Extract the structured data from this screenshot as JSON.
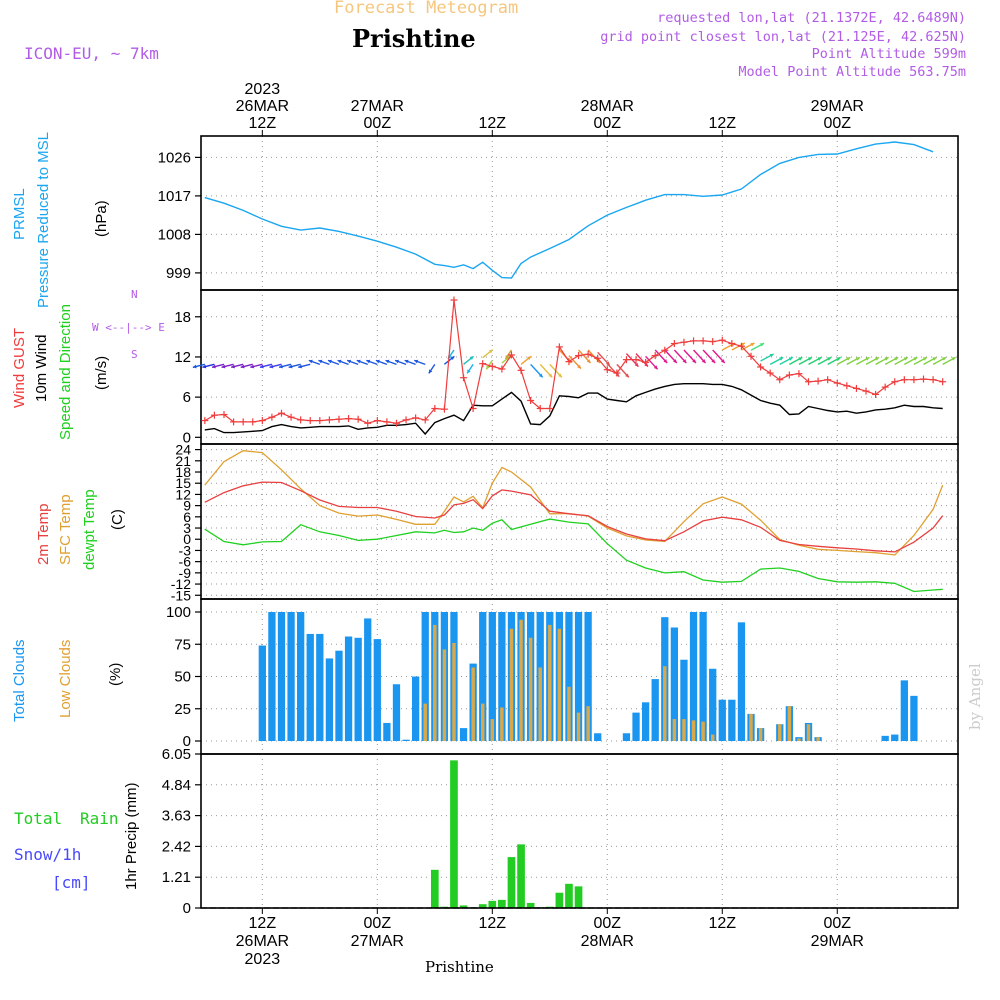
{
  "header": {
    "product": "Forecast Meteogram",
    "location": "Prishtine",
    "model": "ICON-EU, ~ 7km",
    "requested": "requested lon,lat (21.1372E, 42.6489N)",
    "grid_point": "grid point closest lon,lat (21.125E, 42.625N)",
    "point_altitude": "Point Altitude 599m",
    "model_altitude": "Model Point Altitude 563.75m",
    "footer": "Prishtine",
    "watermark": "by Angel"
  },
  "time_axis": {
    "top": [
      {
        "t": 12,
        "lines": [
          "2023",
          "26MAR",
          "12Z"
        ]
      },
      {
        "t": 24,
        "lines": [
          "27MAR",
          "00Z"
        ]
      },
      {
        "t": 36,
        "lines": [
          "12Z"
        ]
      },
      {
        "t": 48,
        "lines": [
          "28MAR",
          "00Z"
        ]
      },
      {
        "t": 60,
        "lines": [
          "12Z"
        ]
      },
      {
        "t": 72,
        "lines": [
          "29MAR",
          "00Z"
        ]
      }
    ],
    "bottom": [
      {
        "t": 12,
        "lines": [
          "12Z",
          "26MAR",
          "2023"
        ]
      },
      {
        "t": 24,
        "lines": [
          "00Z",
          "27MAR"
        ]
      },
      {
        "t": 36,
        "lines": [
          "12Z"
        ]
      },
      {
        "t": 48,
        "lines": [
          "00Z",
          "28MAR"
        ]
      },
      {
        "t": 60,
        "lines": [
          "12Z"
        ]
      },
      {
        "t": 72,
        "lines": [
          "00Z",
          "29MAR"
        ]
      }
    ]
  },
  "colors": {
    "pressure": "#1aa6f0",
    "gust": "#f03c3c",
    "wind": "#000000",
    "temp": "#e84040",
    "sfc": "#e0a030",
    "dewpt": "#20d020",
    "total_cloud": "#1a96f0",
    "low_cloud": "#d9a84a",
    "rain": "#22cc22",
    "snow": "#4848ff",
    "header_purple": "#b25ce6",
    "header_orange": "#f5c77e"
  },
  "chart_data": [
    {
      "type": "line",
      "id": "pressure",
      "ylabel_lines": [
        "PRMSL",
        "Pressure Reduced to MSL"
      ],
      "unit": "(hPa)",
      "ylim": [
        995,
        1031
      ],
      "yticks": [
        999,
        1008,
        1017,
        1026
      ],
      "t": [
        6,
        8,
        10,
        12,
        14,
        16,
        18,
        20,
        22,
        24,
        26,
        28,
        30,
        31,
        32,
        33,
        34,
        35,
        36,
        37,
        38,
        39,
        40,
        42,
        44,
        46,
        48,
        50,
        52,
        54,
        56,
        58,
        60,
        62,
        64,
        66,
        68,
        70,
        72,
        74,
        76,
        78,
        80,
        82
      ],
      "values": [
        1016.6,
        1015.3,
        1013.6,
        1011.6,
        1009.9,
        1009.0,
        1009.5,
        1008.7,
        1007.6,
        1006.4,
        1005.0,
        1003.4,
        1001.0,
        1000.7,
        1000.3,
        1000.9,
        1000.0,
        1001.5,
        999.6,
        997.9,
        997.8,
        1001.2,
        1002.7,
        1004.7,
        1006.8,
        1010.0,
        1012.5,
        1014.3,
        1016.0,
        1017.3,
        1017.3,
        1016.9,
        1017.2,
        1018.6,
        1022.0,
        1024.6,
        1026.0,
        1026.7,
        1026.8,
        1028.0,
        1029.1,
        1029.6,
        1029.0,
        1027.3
      ]
    },
    {
      "type": "line",
      "id": "wind",
      "ylabel_lines": [
        "Wind GUST",
        "10m Wind",
        "Speed and Direction"
      ],
      "unit": "(m/s)",
      "compass": [
        "N",
        "W <--|--> E",
        "S"
      ],
      "ylim": [
        -1,
        22
      ],
      "yticks": [
        0,
        6,
        12,
        18
      ],
      "t": [
        6,
        7,
        8,
        9,
        10,
        11,
        12,
        13,
        14,
        15,
        16,
        17,
        18,
        19,
        20,
        21,
        22,
        23,
        24,
        25,
        26,
        27,
        28,
        29,
        30,
        31,
        32,
        33,
        34,
        35,
        36,
        37,
        38,
        39,
        40,
        41,
        42,
        43,
        44,
        45,
        46,
        47,
        48,
        49,
        50,
        51,
        52,
        53,
        54,
        55,
        56,
        57,
        58,
        59,
        60,
        61,
        62,
        63,
        64,
        65,
        66,
        67,
        68,
        69,
        70,
        71,
        72,
        73,
        74,
        75,
        76,
        77,
        78,
        79,
        80,
        81,
        82,
        83
      ],
      "gust": [
        2.5,
        3.3,
        3.4,
        2.3,
        2.3,
        2.3,
        2.5,
        3.0,
        3.6,
        3.0,
        2.6,
        2.5,
        2.5,
        2.6,
        2.7,
        2.8,
        2.7,
        2.1,
        2.5,
        2.3,
        2.1,
        2.6,
        2.9,
        2.6,
        4.3,
        4.2,
        20.5,
        8.9,
        4.3,
        11.0,
        10.6,
        10.2,
        12.3,
        10.0,
        5.5,
        4.3,
        4.3,
        13.5,
        11.3,
        12.2,
        12.4,
        11.8,
        10.1,
        9.6,
        11.6,
        11.6,
        11.2,
        12.2,
        13.0,
        14.0,
        14.2,
        14.4,
        14.4,
        14.3,
        14.5,
        14.0,
        13.6,
        12.1,
        10.5,
        9.6,
        8.6,
        9.3,
        9.5,
        8.3,
        8.4,
        8.6,
        8.1,
        7.7,
        7.3,
        6.9,
        6.4,
        7.5,
        8.3,
        8.6,
        8.6,
        8.7,
        8.6,
        8.3
      ],
      "mean": [
        1.1,
        1.3,
        0.7,
        0.7,
        0.8,
        0.9,
        1.0,
        1.6,
        1.9,
        1.6,
        1.4,
        1.5,
        1.6,
        1.6,
        1.6,
        1.7,
        1.2,
        1.4,
        1.5,
        1.8,
        1.8,
        1.9,
        2.1,
        0.5,
        2.2,
        2.8,
        3.3,
        2.5,
        4.8,
        4.7,
        4.7,
        5.7,
        6.7,
        5.4,
        2.0,
        1.9,
        3.2,
        6.2,
        6.1,
        5.9,
        6.6,
        6.6,
        5.7,
        5.5,
        5.3,
        6.2,
        6.7,
        7.2,
        7.6,
        7.9,
        8.0,
        8.0,
        8.0,
        7.9,
        7.9,
        7.6,
        7.1,
        6.3,
        5.5,
        5.1,
        4.8,
        3.4,
        3.5,
        4.6,
        4.3,
        4.0,
        3.8,
        3.9,
        3.6,
        3.8,
        4.1,
        4.2,
        4.4,
        4.8,
        4.6,
        4.6,
        4.4,
        4.3
      ],
      "dir_colors": [
        "#1a56e0",
        "#2030d8",
        "#7a20c8",
        "#7a20c8",
        "#7a20c8",
        "#7a20c8",
        "#7a20c8",
        "#3c3cf0",
        "#3c3cf0",
        "#1a56e0",
        "#1a56e0",
        "#1a56e0",
        "#1a56e0",
        "#1a56e0",
        "#1a56e0",
        "#1a56e0",
        "#1a56e0",
        "#1a56e0",
        "#1a56e0",
        "#1a56e0",
        "#1a56e0",
        "#1a56e0",
        "#1a56e0",
        "#1a56e0",
        "#1a56e0",
        "#1a56e0",
        "#20b0e0",
        "#20c0c0",
        "#1ab0f0",
        "#e0c040",
        "#a0d040",
        "#a0d040",
        "#d0a030",
        "#f0a030",
        "#1a96f0",
        "#e0c040",
        "#e0c040",
        "#f09030",
        "#f09030",
        "#f09030",
        "#f09030",
        "#e05050",
        "#e05050",
        "#e05050",
        "#e83060",
        "#e83060",
        "#e01890",
        "#e01890",
        "#e01890",
        "#e01890",
        "#e01890",
        "#e01890",
        "#e01890",
        "#e01890",
        "#f0a030",
        "#f0a030",
        "#f0a030",
        "#40e080",
        "#20d0a0",
        "#20d0a0",
        "#20d0a0",
        "#20d070",
        "#20d070",
        "#20d070",
        "#20d070",
        "#20d070",
        "#80d040",
        "#80d040",
        "#80d040",
        "#80d040",
        "#80d040",
        "#80d040",
        "#80d040",
        "#80d040",
        "#80d040",
        "#80d040",
        "#80d040",
        "#80d040"
      ]
    },
    {
      "type": "line",
      "id": "temperature",
      "ylabel_lines": [
        "2m Temp",
        "SFC Temp",
        "dewpt Temp"
      ],
      "unit": "(C)",
      "ylim": [
        -16,
        25.5
      ],
      "yticks": [
        -15,
        -12,
        -9,
        -6,
        -3,
        0,
        3,
        6,
        9,
        12,
        15,
        18,
        21,
        24
      ],
      "t": [
        6,
        8,
        10,
        12,
        14,
        16,
        18,
        20,
        22,
        24,
        26,
        28,
        30,
        31,
        32,
        33,
        34,
        35,
        36,
        37,
        38,
        40,
        42,
        44,
        46,
        48,
        50,
        52,
        54,
        56,
        58,
        60,
        62,
        64,
        66,
        68,
        70,
        72,
        74,
        76,
        78,
        80,
        82,
        83
      ],
      "t2m": [
        9.9,
        12.5,
        14.3,
        15.3,
        15.2,
        13.0,
        10.5,
        8.8,
        8.5,
        8.5,
        7.5,
        6.1,
        5.7,
        6.5,
        9.2,
        9.6,
        10.6,
        8.2,
        11.6,
        13.2,
        12.9,
        11.9,
        7.5,
        6.8,
        6.3,
        3.4,
        1.4,
        0.1,
        -0.4,
        2.0,
        4.9,
        5.9,
        5.2,
        3.2,
        -0.3,
        -1.4,
        -1.9,
        -2.3,
        -2.6,
        -3.1,
        -3.4,
        -0.8,
        3.0,
        6.3
      ],
      "sfc": [
        14.5,
        20.8,
        23.7,
        23.2,
        18.6,
        13.5,
        9.0,
        7.0,
        6.2,
        6.5,
        5.3,
        4.0,
        4.0,
        7.5,
        11.3,
        10.0,
        11.5,
        8.4,
        15.0,
        19.2,
        18.0,
        14.0,
        6.8,
        6.9,
        6.2,
        3.0,
        0.9,
        -0.2,
        -0.6,
        4.7,
        9.5,
        11.3,
        9.4,
        5.1,
        -0.1,
        -1.6,
        -2.7,
        -3.0,
        -3.3,
        -3.6,
        -4.2,
        1.0,
        8.0,
        14.5
      ],
      "dewpt": [
        2.7,
        -0.6,
        -1.5,
        -0.7,
        -0.6,
        3.9,
        2.0,
        1.0,
        -0.3,
        0.0,
        1.0,
        2.0,
        1.7,
        2.4,
        1.8,
        2.0,
        3.0,
        2.4,
        4.3,
        5.2,
        2.6,
        4.0,
        5.4,
        4.6,
        4.1,
        -1.2,
        -5.6,
        -7.7,
        -9.0,
        -8.7,
        -10.9,
        -11.5,
        -11.3,
        -8.0,
        -7.7,
        -8.6,
        -10.5,
        -11.4,
        -11.5,
        -11.4,
        -11.8,
        -14.0,
        -13.6,
        -13.4
      ]
    },
    {
      "type": "bar",
      "id": "clouds",
      "ylabel_lines": [
        "Total Clouds",
        "Low Clouds"
      ],
      "unit": "(%)",
      "ylim": [
        0,
        100
      ],
      "yticks": [
        0,
        25,
        50,
        75,
        100
      ],
      "t_start": 6,
      "t_step": 1,
      "total": [
        0,
        0,
        0,
        0,
        0,
        0,
        74,
        100,
        100,
        100,
        100,
        83,
        83,
        64,
        70,
        81,
        80,
        95,
        79,
        14,
        44,
        1,
        50,
        100,
        100,
        100,
        100,
        10,
        60,
        100,
        100,
        100,
        100,
        100,
        100,
        100,
        100,
        100,
        100,
        100,
        100,
        6,
        0,
        0,
        6,
        22,
        30,
        48,
        96,
        88,
        63,
        100,
        100,
        56,
        32,
        32,
        92,
        21,
        10,
        0,
        13,
        27,
        3,
        14,
        3,
        0,
        0,
        0,
        0,
        0,
        0,
        4,
        5,
        47,
        35
      ],
      "low": [
        0,
        0,
        0,
        0,
        0,
        0,
        0,
        0,
        0,
        0,
        0,
        0,
        0,
        0,
        0,
        0,
        0,
        0,
        0,
        0,
        0,
        0,
        0,
        29,
        90,
        71,
        76,
        0,
        57,
        29,
        17,
        26,
        87,
        94,
        80,
        57,
        90,
        87,
        42,
        22,
        27,
        0,
        0,
        0,
        0,
        0,
        0,
        0,
        58,
        17,
        17,
        16,
        15,
        5,
        0,
        0,
        0,
        21,
        10,
        0,
        13,
        27,
        2,
        13,
        3,
        0,
        0,
        0,
        0,
        0,
        0,
        0,
        0,
        0,
        0
      ]
    },
    {
      "type": "bar",
      "id": "precip",
      "ylabel": "1hr Precip (mm)",
      "legend": [
        "Total",
        "Rain",
        "Snow/1h",
        "[cm]"
      ],
      "ylim": [
        0,
        6.05
      ],
      "yticks": [
        0,
        1.21,
        2.42,
        3.63,
        4.84,
        6.05
      ],
      "tick_labels": [
        "0",
        "1.21",
        "2.42",
        "3.63",
        "4.84",
        "6.05"
      ],
      "t": [
        30,
        31,
        32,
        33,
        34,
        35,
        36,
        37,
        38,
        39,
        40,
        41,
        42,
        43,
        44,
        45,
        46
      ],
      "values": [
        1.5,
        0.05,
        5.8,
        0.1,
        0.03,
        0.15,
        0.28,
        0.32,
        2.0,
        2.5,
        0.2,
        0.03,
        0.05,
        0.6,
        0.95,
        0.85,
        0
      ]
    }
  ]
}
